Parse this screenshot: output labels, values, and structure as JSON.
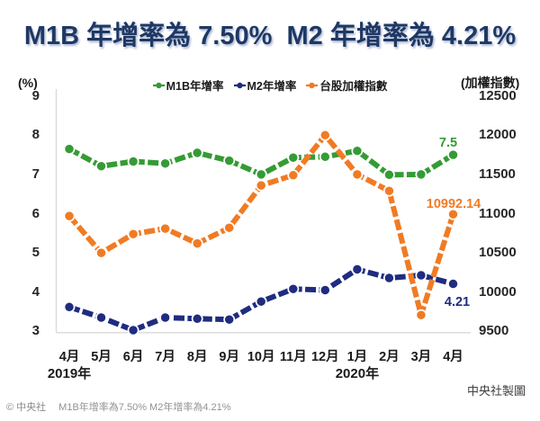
{
  "title": "M1B 年增率為 7.50%  M2 年增率為 4.21%",
  "left_axis": {
    "title": "(%)",
    "ticks": [
      9,
      8,
      7,
      6,
      5,
      4,
      3
    ]
  },
  "right_axis": {
    "title": "(加權指數)",
    "ticks": [
      12500,
      12000,
      11500,
      11000,
      10500,
      10000,
      9500
    ]
  },
  "x_axis": {
    "months": [
      "4月",
      "5月",
      "6月",
      "7月",
      "8月",
      "9月",
      "10月",
      "11月",
      "12月",
      "1月",
      "2月",
      "3月",
      "4月"
    ],
    "year_markers": [
      {
        "label": "2019年",
        "month_index": 0
      },
      {
        "label": "2020年",
        "month_index": 9
      }
    ]
  },
  "legend": [
    {
      "label": "M1B年增率",
      "color": "#359B35"
    },
    {
      "label": "M2年增率",
      "color": "#1F2C80"
    },
    {
      "label": "台股加權指數",
      "color": "#F07B24"
    }
  ],
  "chart_data": {
    "type": "line",
    "categories": [
      "4月",
      "5月",
      "6月",
      "7月",
      "8月",
      "9月",
      "10月",
      "11月",
      "12月",
      "1月",
      "2月",
      "3月",
      "4月"
    ],
    "ylim_left": [
      3,
      9
    ],
    "ylim_right": [
      9500,
      12500
    ],
    "grid": false,
    "series": [
      {
        "name": "M1B年增率",
        "axis": "left",
        "color": "#359B35",
        "values": [
          7.65,
          7.21,
          7.33,
          7.28,
          7.55,
          7.35,
          7.0,
          7.43,
          7.45,
          7.6,
          6.99,
          7.0,
          7.5
        ],
        "end_label": {
          "text": "7.5",
          "x": 498,
          "y": 163
        }
      },
      {
        "name": "M2年增率",
        "axis": "left",
        "color": "#1F2C80",
        "values": [
          3.62,
          3.35,
          3.03,
          3.35,
          3.32,
          3.3,
          3.76,
          4.08,
          4.05,
          4.58,
          4.36,
          4.43,
          4.21
        ],
        "end_label": {
          "text": "4.21",
          "x": 508,
          "y": 340
        }
      },
      {
        "name": "台股加權指數",
        "axis": "right",
        "color": "#F07B24",
        "values": [
          10970,
          10500,
          10740,
          10810,
          10620,
          10820,
          11360,
          11490,
          12000,
          11500,
          11290,
          9708,
          10992.14
        ],
        "end_label": {
          "text": "10992.14",
          "x": 504,
          "y": 231
        }
      }
    ]
  },
  "credit": "中央社製圖",
  "footer": {
    "source": "© 中央社",
    "note": "M1B年增率為7.50% M2年增率為4.21%"
  },
  "colors": {
    "title": "#1F3864",
    "axis_line": "#D9D9D9"
  }
}
